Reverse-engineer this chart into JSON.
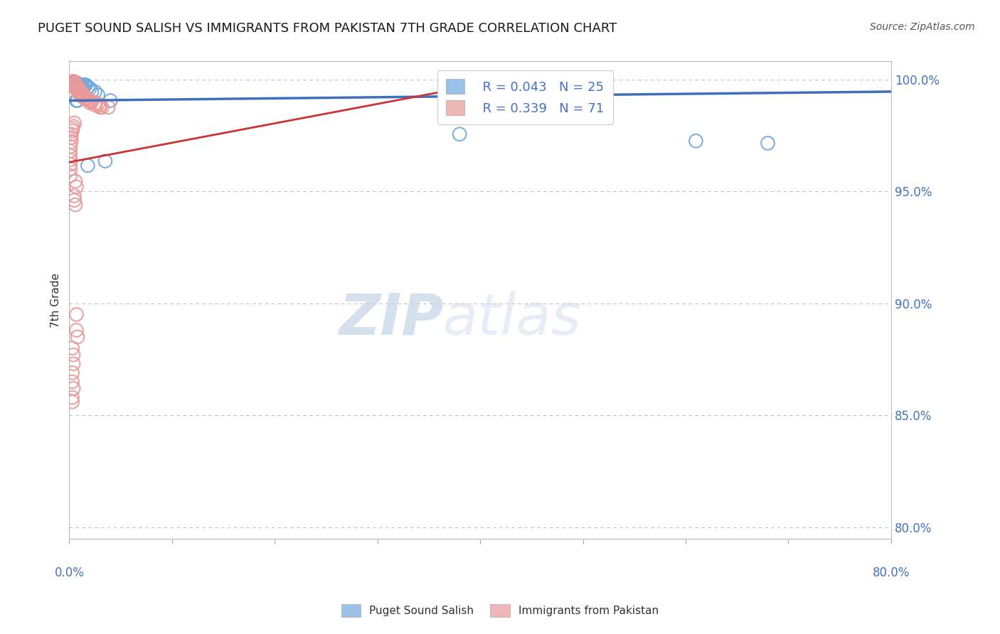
{
  "title": "PUGET SOUND SALISH VS IMMIGRANTS FROM PAKISTAN 7TH GRADE CORRELATION CHART",
  "source": "Source: ZipAtlas.com",
  "ylabel": "7th Grade",
  "ytick_values": [
    0.8,
    0.85,
    0.9,
    0.95,
    1.0
  ],
  "xmin": 0.0,
  "xmax": 0.8,
  "ymin": 0.795,
  "ymax": 1.008,
  "legend_blue_r": "R = 0.043",
  "legend_blue_n": "N = 25",
  "legend_pink_r": "R = 0.339",
  "legend_pink_n": "N = 71",
  "blue_color": "#6fa8dc",
  "pink_color": "#ea9999",
  "blue_line_color": "#3d6fbe",
  "pink_line_color": "#cc3333",
  "blue_line": [
    [
      0.0,
      0.9905
    ],
    [
      0.8,
      0.9945
    ]
  ],
  "pink_line": [
    [
      0.0,
      0.963
    ],
    [
      0.45,
      1.002
    ]
  ],
  "blue_scatter": [
    [
      0.003,
      0.9985
    ],
    [
      0.005,
      0.9985
    ],
    [
      0.006,
      0.998
    ],
    [
      0.007,
      0.9985
    ],
    [
      0.008,
      0.998
    ],
    [
      0.009,
      0.997
    ],
    [
      0.01,
      0.9975
    ],
    [
      0.011,
      0.9975
    ],
    [
      0.012,
      0.997
    ],
    [
      0.013,
      0.9975
    ],
    [
      0.015,
      0.9975
    ],
    [
      0.016,
      0.9975
    ],
    [
      0.018,
      0.9965
    ],
    [
      0.02,
      0.996
    ],
    [
      0.022,
      0.9945
    ],
    [
      0.025,
      0.9945
    ],
    [
      0.028,
      0.993
    ],
    [
      0.04,
      0.9905
    ],
    [
      0.007,
      0.9905
    ],
    [
      0.008,
      0.9905
    ],
    [
      0.035,
      0.9635
    ],
    [
      0.018,
      0.9615
    ],
    [
      0.38,
      0.9755
    ],
    [
      0.61,
      0.9725
    ],
    [
      0.68,
      0.9715
    ]
  ],
  "pink_scatter": [
    [
      0.001,
      0.9985
    ],
    [
      0.002,
      0.9985
    ],
    [
      0.003,
      0.999
    ],
    [
      0.004,
      0.999
    ],
    [
      0.004,
      0.998
    ],
    [
      0.005,
      0.999
    ],
    [
      0.005,
      0.998
    ],
    [
      0.005,
      0.997
    ],
    [
      0.006,
      0.998
    ],
    [
      0.006,
      0.997
    ],
    [
      0.006,
      0.996
    ],
    [
      0.007,
      0.997
    ],
    [
      0.007,
      0.9965
    ],
    [
      0.007,
      0.9955
    ],
    [
      0.008,
      0.9965
    ],
    [
      0.008,
      0.9955
    ],
    [
      0.009,
      0.9955
    ],
    [
      0.009,
      0.9945
    ],
    [
      0.01,
      0.9955
    ],
    [
      0.01,
      0.9945
    ],
    [
      0.01,
      0.9935
    ],
    [
      0.011,
      0.9945
    ],
    [
      0.011,
      0.9935
    ],
    [
      0.012,
      0.9935
    ],
    [
      0.012,
      0.9925
    ],
    [
      0.013,
      0.9935
    ],
    [
      0.013,
      0.9925
    ],
    [
      0.014,
      0.9925
    ],
    [
      0.015,
      0.9925
    ],
    [
      0.015,
      0.9915
    ],
    [
      0.017,
      0.9915
    ],
    [
      0.018,
      0.991
    ],
    [
      0.02,
      0.9905
    ],
    [
      0.02,
      0.9895
    ],
    [
      0.022,
      0.99
    ],
    [
      0.025,
      0.9895
    ],
    [
      0.025,
      0.9885
    ],
    [
      0.028,
      0.989
    ],
    [
      0.03,
      0.9885
    ],
    [
      0.03,
      0.9875
    ],
    [
      0.032,
      0.9875
    ],
    [
      0.038,
      0.9875
    ],
    [
      0.005,
      0.9805
    ],
    [
      0.004,
      0.979
    ],
    [
      0.003,
      0.978
    ],
    [
      0.003,
      0.977
    ],
    [
      0.002,
      0.9755
    ],
    [
      0.002,
      0.974
    ],
    [
      0.002,
      0.972
    ],
    [
      0.001,
      0.97
    ],
    [
      0.001,
      0.968
    ],
    [
      0.001,
      0.966
    ],
    [
      0.001,
      0.964
    ],
    [
      0.001,
      0.962
    ],
    [
      0.001,
      0.96
    ],
    [
      0.001,
      0.957
    ],
    [
      0.006,
      0.9545
    ],
    [
      0.007,
      0.952
    ],
    [
      0.005,
      0.948
    ],
    [
      0.005,
      0.946
    ],
    [
      0.006,
      0.944
    ],
    [
      0.007,
      0.895
    ],
    [
      0.007,
      0.888
    ],
    [
      0.008,
      0.885
    ],
    [
      0.003,
      0.88
    ],
    [
      0.004,
      0.877
    ],
    [
      0.004,
      0.873
    ],
    [
      0.003,
      0.869
    ],
    [
      0.003,
      0.865
    ],
    [
      0.004,
      0.862
    ],
    [
      0.003,
      0.858
    ],
    [
      0.003,
      0.856
    ]
  ],
  "watermark_zip": "ZIP",
  "watermark_atlas": "atlas",
  "title_fontsize": 13,
  "axis_label_color": "#4472c4",
  "grid_color": "#c0c0c0",
  "source_color": "#555555"
}
